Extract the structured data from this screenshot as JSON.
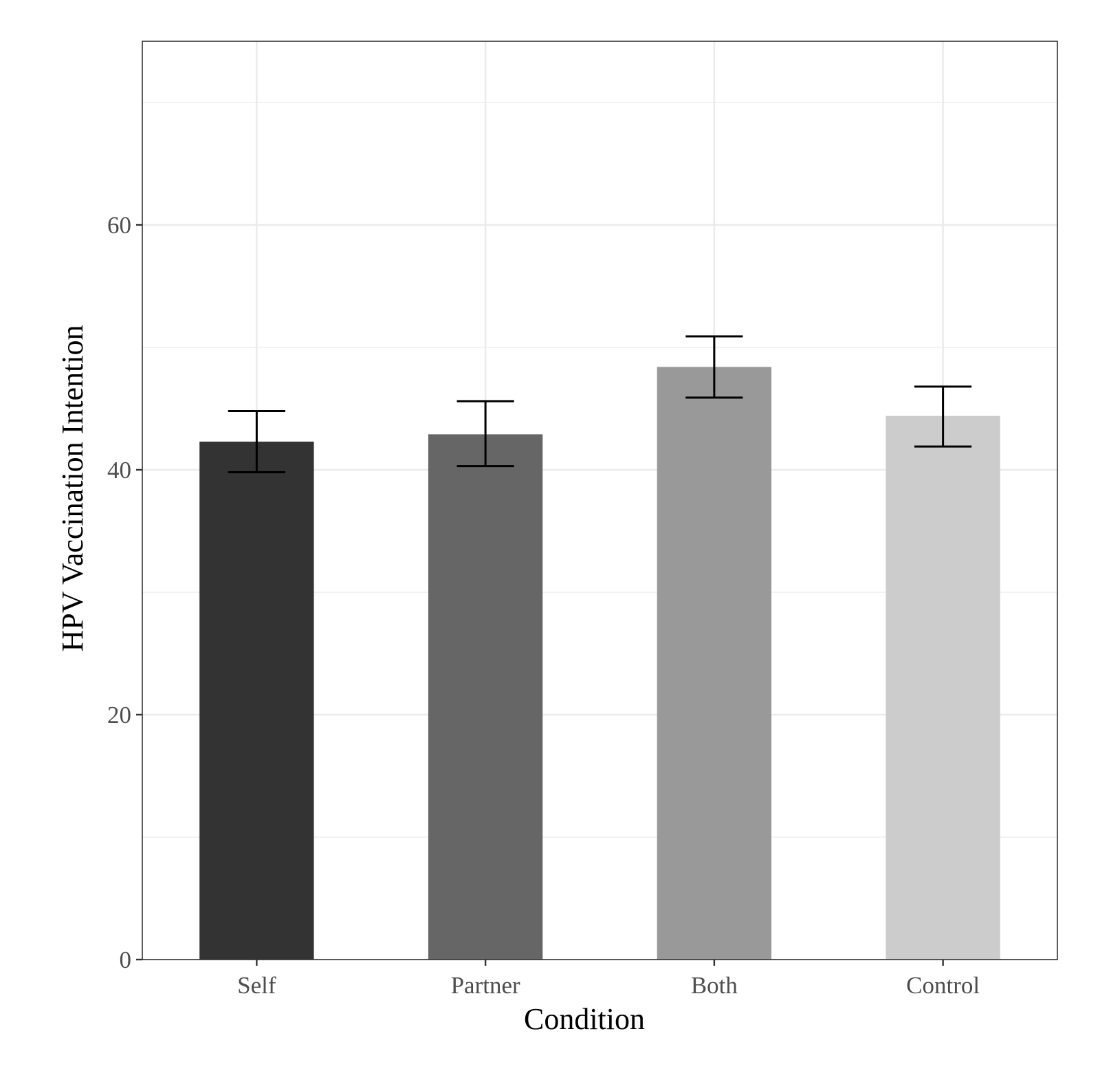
{
  "chart_data": {
    "type": "bar",
    "title": "",
    "xlabel": "Condition",
    "ylabel": "HPV Vaccination Intention",
    "categories": [
      "Self",
      "Partner",
      "Both",
      "Control"
    ],
    "values": [
      42.3,
      42.9,
      48.4,
      44.4
    ],
    "error_bars": [
      {
        "low": 39.8,
        "high": 44.8
      },
      {
        "low": 40.3,
        "high": 45.6
      },
      {
        "low": 45.9,
        "high": 50.9
      },
      {
        "low": 41.9,
        "high": 46.8
      }
    ],
    "bar_colors": [
      "#333333",
      "#666666",
      "#999999",
      "#cccccc"
    ],
    "ylim": [
      0,
      75
    ],
    "y_ticks": [
      0,
      20,
      40,
      60
    ],
    "y_tick_labels": [
      "0",
      "20",
      "40",
      "60"
    ],
    "grid": true,
    "legend": "none"
  }
}
